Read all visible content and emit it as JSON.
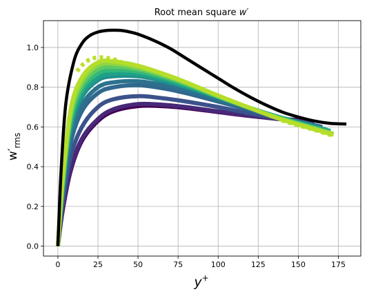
{
  "chart_data": {
    "type": "line",
    "title": "Root mean square ",
    "title_var": "w′",
    "xlabel_main": "y",
    "xlabel_sup": "+",
    "ylabel_main": "w′",
    "ylabel_sub": "rms",
    "xlim": [
      -9,
      189
    ],
    "ylim": [
      -0.05,
      1.135
    ],
    "xticks": [
      0,
      25,
      50,
      75,
      100,
      125,
      150,
      175
    ],
    "yticks": [
      0.0,
      0.2,
      0.4,
      0.6,
      0.8,
      1.0
    ],
    "xtick_labels": [
      "0",
      "25",
      "50",
      "75",
      "100",
      "125",
      "150",
      "175"
    ],
    "ytick_labels": [
      "0.0",
      "0.2",
      "0.4",
      "0.6",
      "0.8",
      "1.0"
    ],
    "grid": true,
    "colormap": [
      "#440154",
      "#3b528b",
      "#21908c",
      "#5ec962",
      "#b5de2b"
    ],
    "reference": {
      "color": "#000000",
      "x": [
        0,
        2,
        5,
        10,
        15,
        20,
        25,
        30,
        35,
        40,
        45,
        50,
        60,
        70,
        80,
        90,
        100,
        110,
        120,
        130,
        140,
        150,
        160,
        170,
        180
      ],
      "y": [
        0.0,
        0.38,
        0.72,
        0.93,
        1.02,
        1.06,
        1.078,
        1.085,
        1.087,
        1.085,
        1.078,
        1.067,
        1.035,
        0.995,
        0.945,
        0.895,
        0.845,
        0.795,
        0.75,
        0.71,
        0.675,
        0.65,
        0.63,
        0.618,
        0.615
      ]
    },
    "series": [
      {
        "color": "#440154",
        "x": [
          0,
          3,
          8,
          15,
          25,
          35,
          50,
          65,
          80,
          100,
          120,
          140,
          150
        ],
        "y": [
          0.0,
          0.18,
          0.38,
          0.53,
          0.63,
          0.68,
          0.705,
          0.705,
          0.695,
          0.675,
          0.655,
          0.64,
          0.635
        ]
      },
      {
        "color": "#482878",
        "x": [
          0,
          3,
          8,
          15,
          25,
          35,
          50,
          65,
          80,
          100,
          120,
          140,
          155
        ],
        "y": [
          0.0,
          0.19,
          0.39,
          0.54,
          0.64,
          0.69,
          0.715,
          0.712,
          0.7,
          0.678,
          0.656,
          0.638,
          0.63
        ]
      },
      {
        "color": "#3b528b",
        "x": [
          0,
          3,
          8,
          15,
          25,
          35,
          50,
          65,
          80,
          100,
          120,
          140,
          160
        ],
        "y": [
          0.0,
          0.22,
          0.45,
          0.6,
          0.7,
          0.74,
          0.755,
          0.745,
          0.728,
          0.7,
          0.668,
          0.64,
          0.615
        ]
      },
      {
        "color": "#31688e",
        "x": [
          0,
          3,
          8,
          15,
          25,
          35,
          50,
          65,
          80,
          100,
          120,
          140,
          165
        ],
        "y": [
          0.0,
          0.25,
          0.52,
          0.68,
          0.77,
          0.8,
          0.81,
          0.795,
          0.77,
          0.728,
          0.685,
          0.645,
          0.6
        ]
      },
      {
        "color": "#2c728e",
        "x": [
          0,
          3,
          8,
          15,
          25,
          35,
          50,
          65,
          80,
          100,
          120,
          140,
          165
        ],
        "y": [
          0.0,
          0.27,
          0.55,
          0.71,
          0.8,
          0.825,
          0.83,
          0.812,
          0.785,
          0.738,
          0.69,
          0.645,
          0.592
        ]
      },
      {
        "color": "#21908c",
        "x": [
          0,
          3,
          8,
          15,
          25,
          35,
          50,
          65,
          80,
          100,
          120,
          140,
          168
        ],
        "y": [
          0.0,
          0.29,
          0.59,
          0.75,
          0.835,
          0.855,
          0.855,
          0.832,
          0.8,
          0.748,
          0.695,
          0.645,
          0.585
        ]
      },
      {
        "color": "#1fa187",
        "x": [
          0,
          3,
          8,
          15,
          25,
          35,
          50,
          65,
          80,
          100,
          120,
          140,
          170
        ],
        "y": [
          0.0,
          0.3,
          0.61,
          0.77,
          0.85,
          0.868,
          0.865,
          0.84,
          0.805,
          0.75,
          0.695,
          0.645,
          0.58
        ]
      },
      {
        "color": "#35b779",
        "x": [
          0,
          3,
          8,
          15,
          25,
          35,
          50,
          65,
          80,
          100,
          120,
          140,
          170
        ],
        "y": [
          0.0,
          0.31,
          0.63,
          0.79,
          0.87,
          0.885,
          0.878,
          0.85,
          0.812,
          0.752,
          0.695,
          0.642,
          0.575
        ]
      },
      {
        "color": "#5ec962",
        "x": [
          0,
          3,
          8,
          15,
          25,
          35,
          50,
          65,
          80,
          100,
          120,
          140,
          170
        ],
        "y": [
          0.0,
          0.32,
          0.65,
          0.81,
          0.89,
          0.902,
          0.89,
          0.858,
          0.818,
          0.755,
          0.695,
          0.64,
          0.57
        ]
      },
      {
        "color": "#90d743",
        "x": [
          0,
          3,
          8,
          15,
          25,
          35,
          50,
          65,
          80,
          100,
          120,
          140,
          172
        ],
        "y": [
          0.0,
          0.33,
          0.67,
          0.83,
          0.91,
          0.918,
          0.9,
          0.865,
          0.822,
          0.757,
          0.695,
          0.638,
          0.565
        ]
      },
      {
        "color": "#b5de2b",
        "x": [
          0,
          3,
          8,
          15,
          25,
          35,
          50,
          65,
          80,
          100,
          120,
          140,
          172
        ],
        "y": [
          0.0,
          0.34,
          0.69,
          0.85,
          0.925,
          0.93,
          0.908,
          0.87,
          0.825,
          0.758,
          0.695,
          0.636,
          0.56
        ]
      }
    ],
    "dotted": {
      "color": "#bddf26",
      "x": [
        12,
        15,
        20,
        25,
        30,
        35,
        40,
        50,
        65,
        80,
        100,
        120,
        140,
        160,
        172
      ],
      "y": [
        0.88,
        0.91,
        0.94,
        0.95,
        0.948,
        0.94,
        0.925,
        0.9,
        0.86,
        0.818,
        0.752,
        0.69,
        0.632,
        0.585,
        0.555
      ]
    }
  }
}
